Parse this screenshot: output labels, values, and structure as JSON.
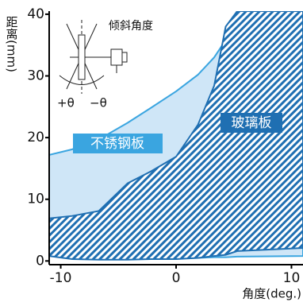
{
  "chart_data": {
    "type": "area",
    "y_label": "距离(mm)",
    "x_label": "角度(deg.)",
    "xlim": [
      -11,
      11
    ],
    "ylim": [
      -0.6,
      40.5
    ],
    "xticks": [
      -10,
      0,
      10
    ],
    "yticks": [
      0,
      10,
      20,
      30,
      40
    ],
    "inset": {
      "title": "倾斜角度",
      "plus": "+θ",
      "minus": "−θ"
    },
    "series": [
      {
        "name": "不锈钢板",
        "color": "#3aa5e0",
        "fill": "#cfe6f7",
        "hatch": false,
        "x": [
          -11,
          -9,
          -6.7,
          -4.2,
          -2.2,
          0,
          1.9,
          3.3,
          4.3,
          5.3,
          11
        ],
        "upper": [
          17.2,
          18.1,
          19.7,
          22.4,
          24.8,
          27.5,
          30.2,
          33,
          35.8,
          40.5,
          40.5
        ],
        "lower": [
          1,
          0.5,
          0.4,
          0.4,
          0.4,
          0.4,
          0.5,
          0.6,
          0.6,
          0.7,
          0.8
        ]
      },
      {
        "name": "玻璃板",
        "color": "#1f6fb2",
        "fill": "#1f6fb2",
        "hatch": true,
        "x": [
          -11,
          -9,
          -6.7,
          -4.2,
          -2.2,
          0,
          1.9,
          3.3,
          4.3,
          5.3,
          11
        ],
        "upper": [
          6.9,
          7.3,
          8.1,
          12.6,
          14.5,
          16.9,
          22.1,
          28.4,
          38,
          40.5,
          40.5
        ],
        "lower": [
          0.8,
          0.3,
          0.2,
          0.2,
          0.3,
          0.3,
          0.5,
          0.8,
          1.0,
          1.6,
          2.1
        ]
      }
    ]
  }
}
